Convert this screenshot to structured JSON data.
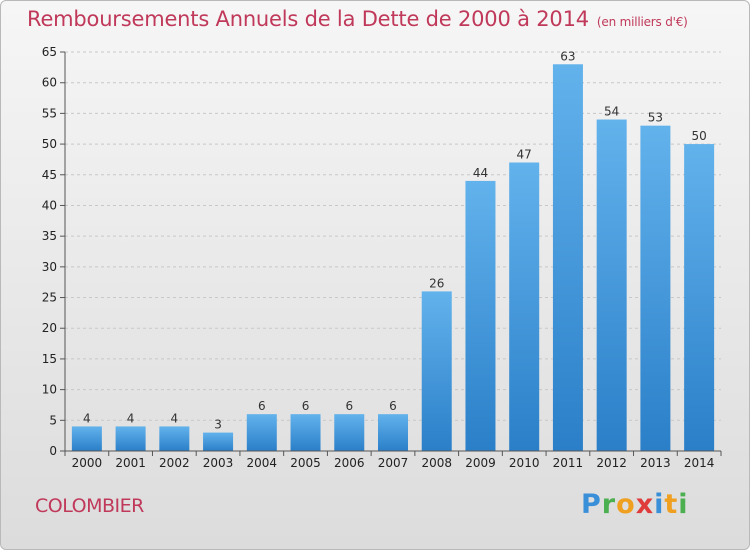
{
  "title": "Remboursements Annuels de la Dette de 2000 à 2014",
  "subtitle": "(en milliers d'€)",
  "commune": "COLOMBIER",
  "logo": {
    "text": "Proxiti",
    "letters": [
      {
        "ch": "P",
        "color": "#3a8fd9"
      },
      {
        "ch": "r",
        "color": "#4caf50"
      },
      {
        "ch": "o",
        "color": "#f0a020"
      },
      {
        "ch": "x",
        "color": "#e03b3b"
      },
      {
        "ch": "i",
        "color": "#3a8fd9"
      },
      {
        "ch": "t",
        "color": "#f0a020"
      },
      {
        "ch": "i",
        "color": "#4caf50"
      }
    ]
  },
  "colors": {
    "bar_top": "#62b2ec",
    "bar_bottom": "#2a7fc8",
    "title": "#c0395a",
    "grid": "#c8c8c8",
    "axis_text": "#222222"
  },
  "chart_data": {
    "type": "bar",
    "categories": [
      "2000",
      "2001",
      "2002",
      "2003",
      "2004",
      "2005",
      "2006",
      "2007",
      "2008",
      "2009",
      "2010",
      "2011",
      "2012",
      "2013",
      "2014"
    ],
    "values": [
      4,
      4,
      4,
      3,
      6,
      6,
      6,
      6,
      26,
      44,
      47,
      63,
      54,
      53,
      50
    ],
    "title": "Remboursements Annuels de la Dette de 2000 à 2014",
    "subtitle": "(en milliers d'€)",
    "xlabel": "",
    "ylabel": "",
    "ylim": [
      0,
      65
    ],
    "yticks": [
      0,
      5,
      10,
      15,
      20,
      25,
      30,
      35,
      40,
      45,
      50,
      55,
      60,
      65
    ],
    "grid": "dashed horizontal",
    "data_labels": true,
    "legend": false
  }
}
